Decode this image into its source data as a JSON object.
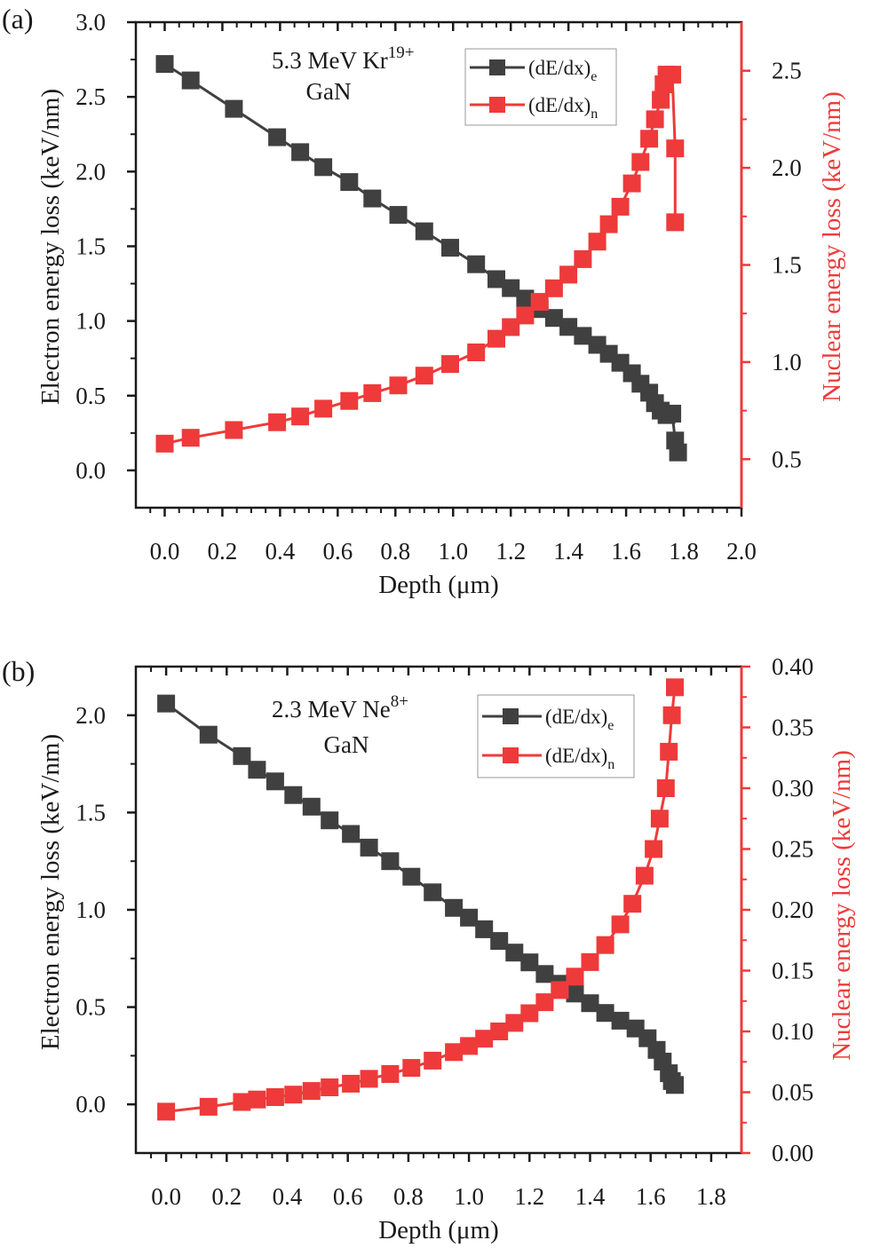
{
  "colors": {
    "electron": "#404040",
    "nuclear": "#ee3a3a",
    "axis": "#1a1a1a"
  },
  "chart_data": [
    {
      "type": "line",
      "panel_label": "(a)",
      "annotation": {
        "ion_base": "5.3 MeV Kr",
        "ion_charge": "19+",
        "material": "GaN"
      },
      "xlabel": "Depth (μm)",
      "ylabel_left": "Electron energy loss (keV/nm)",
      "ylabel_right": "Nuclear energy loss (keV/nm)",
      "xlim": [
        -0.1,
        2.0
      ],
      "ylim_left": [
        -0.25,
        3.0
      ],
      "ylim_right": [
        0.25,
        2.75
      ],
      "x_ticks": [
        "0.0",
        "0.2",
        "0.4",
        "0.6",
        "0.8",
        "1.0",
        "1.2",
        "1.4",
        "1.6",
        "1.8",
        "2.0"
      ],
      "y_ticks_left": [
        "0.0",
        "0.5",
        "1.0",
        "1.5",
        "2.0",
        "2.5",
        "3.0"
      ],
      "y_ticks_right": [
        "0.5",
        "1.0",
        "1.5",
        "2.0",
        "2.5"
      ],
      "legend": {
        "electron_base": "(dE/dx)",
        "electron_sub": "e",
        "nuclear_base": "(dE/dx)",
        "nuclear_sub": "n",
        "placement": "top-right"
      },
      "series": [
        {
          "name": "(dE/dx)e",
          "axis": "left",
          "x": [
            0,
            0.09,
            0.24,
            0.39,
            0.47,
            0.55,
            0.64,
            0.72,
            0.81,
            0.9,
            0.99,
            1.08,
            1.15,
            1.2,
            1.25,
            1.3,
            1.35,
            1.4,
            1.45,
            1.5,
            1.54,
            1.58,
            1.62,
            1.65,
            1.68,
            1.7,
            1.72,
            1.74,
            1.76,
            1.77,
            1.78
          ],
          "values": [
            2.72,
            2.61,
            2.42,
            2.23,
            2.13,
            2.03,
            1.93,
            1.82,
            1.71,
            1.6,
            1.49,
            1.38,
            1.28,
            1.22,
            1.15,
            1.08,
            1.02,
            0.96,
            0.9,
            0.84,
            0.78,
            0.72,
            0.65,
            0.58,
            0.52,
            0.45,
            0.4,
            0.37,
            0.38,
            0.2,
            0.12
          ]
        },
        {
          "name": "(dE/dx)n",
          "axis": "right",
          "x": [
            0,
            0.09,
            0.24,
            0.39,
            0.47,
            0.55,
            0.64,
            0.72,
            0.81,
            0.9,
            0.99,
            1.08,
            1.15,
            1.2,
            1.25,
            1.3,
            1.35,
            1.4,
            1.45,
            1.5,
            1.54,
            1.58,
            1.62,
            1.65,
            1.68,
            1.7,
            1.72,
            1.73,
            1.74,
            1.76,
            1.77,
            1.77
          ],
          "values": [
            0.58,
            0.61,
            0.65,
            0.69,
            0.72,
            0.76,
            0.8,
            0.84,
            0.88,
            0.93,
            0.99,
            1.05,
            1.12,
            1.18,
            1.24,
            1.31,
            1.38,
            1.45,
            1.53,
            1.62,
            1.71,
            1.8,
            1.92,
            2.03,
            2.15,
            2.25,
            2.35,
            2.43,
            2.48,
            2.48,
            2.1,
            1.72
          ]
        }
      ]
    },
    {
      "type": "line",
      "panel_label": "(b)",
      "annotation": {
        "ion_base": "2.3 MeV Ne",
        "ion_charge": "8+",
        "material": "GaN"
      },
      "xlabel": "Depth (μm)",
      "ylabel_left": "Electron energy loss (keV/nm)",
      "ylabel_right": "Nuclear energy loss (keV/nm)",
      "xlim": [
        -0.1,
        1.9
      ],
      "ylim_left": [
        -0.25,
        2.25
      ],
      "ylim_right": [
        0.0,
        0.4
      ],
      "x_ticks": [
        "0.0",
        "0.2",
        "0.4",
        "0.6",
        "0.8",
        "1.0",
        "1.2",
        "1.4",
        "1.6",
        "1.8"
      ],
      "y_ticks_left": [
        "0.0",
        "0.5",
        "1.0",
        "1.5",
        "2.0"
      ],
      "y_ticks_right": [
        "0.00",
        "0.05",
        "0.10",
        "0.15",
        "0.20",
        "0.25",
        "0.30",
        "0.35",
        "0.40"
      ],
      "legend": {
        "electron_base": "(dE/dx)",
        "electron_sub": "e",
        "nuclear_base": "(dE/dx)",
        "nuclear_sub": "n",
        "placement": "top-right"
      },
      "series": [
        {
          "name": "(dE/dx)e",
          "axis": "left",
          "x": [
            0,
            0.14,
            0.25,
            0.3,
            0.36,
            0.42,
            0.48,
            0.54,
            0.61,
            0.67,
            0.74,
            0.81,
            0.88,
            0.95,
            1.0,
            1.05,
            1.1,
            1.15,
            1.2,
            1.25,
            1.3,
            1.35,
            1.4,
            1.45,
            1.5,
            1.55,
            1.59,
            1.62,
            1.64,
            1.66,
            1.67,
            1.68
          ],
          "values": [
            2.06,
            1.9,
            1.79,
            1.72,
            1.66,
            1.59,
            1.53,
            1.46,
            1.39,
            1.32,
            1.25,
            1.17,
            1.09,
            1.01,
            0.96,
            0.9,
            0.84,
            0.78,
            0.73,
            0.67,
            0.62,
            0.57,
            0.52,
            0.47,
            0.43,
            0.39,
            0.34,
            0.28,
            0.22,
            0.16,
            0.12,
            0.1
          ]
        },
        {
          "name": "(dE/dx)n",
          "axis": "right",
          "x": [
            0,
            0.14,
            0.25,
            0.3,
            0.36,
            0.42,
            0.48,
            0.54,
            0.61,
            0.67,
            0.74,
            0.81,
            0.88,
            0.95,
            1.0,
            1.05,
            1.1,
            1.15,
            1.2,
            1.25,
            1.3,
            1.35,
            1.4,
            1.45,
            1.5,
            1.54,
            1.58,
            1.61,
            1.63,
            1.65,
            1.66,
            1.67,
            1.68
          ],
          "values": [
            0.034,
            0.038,
            0.042,
            0.044,
            0.046,
            0.048,
            0.051,
            0.054,
            0.057,
            0.061,
            0.065,
            0.07,
            0.076,
            0.083,
            0.088,
            0.094,
            0.1,
            0.107,
            0.115,
            0.124,
            0.134,
            0.145,
            0.157,
            0.171,
            0.188,
            0.205,
            0.228,
            0.25,
            0.275,
            0.3,
            0.33,
            0.36,
            0.383
          ]
        }
      ]
    }
  ]
}
